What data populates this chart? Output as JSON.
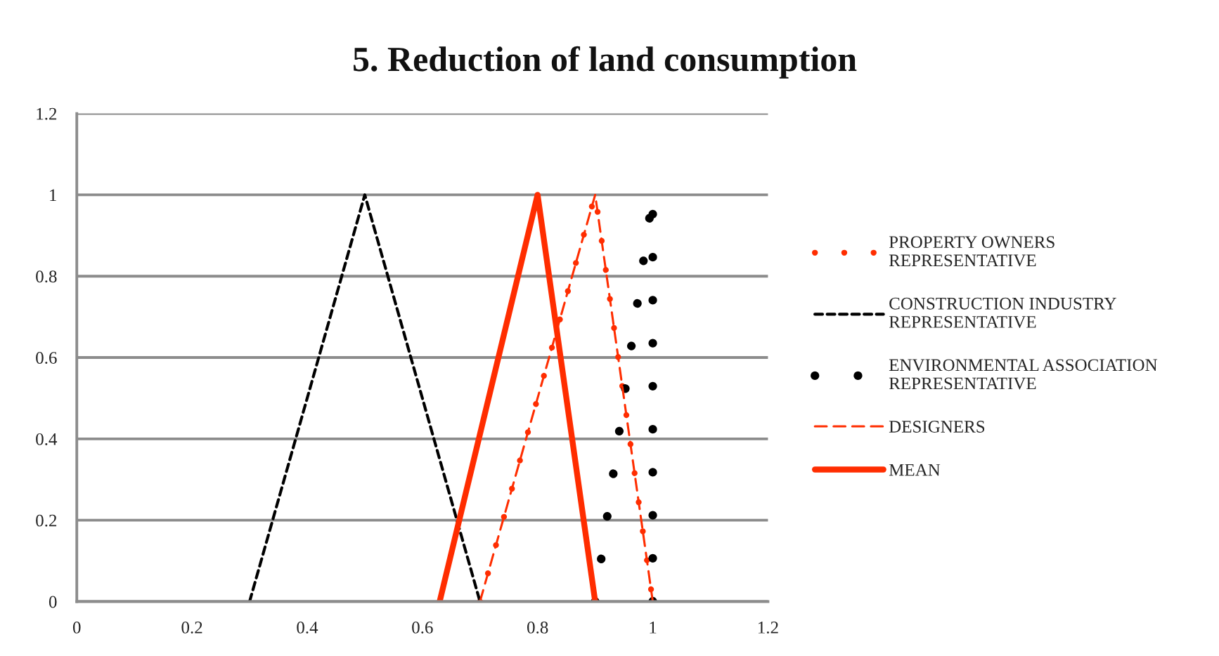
{
  "chart_data": {
    "type": "line",
    "title": "5. Reduction of land consumption",
    "xlim": [
      0,
      1.2
    ],
    "xticks": [
      0,
      0.2,
      0.4,
      0.6,
      0.8,
      1,
      1.2
    ],
    "ylim": [
      0,
      1.2
    ],
    "yticks": [
      0,
      0.2,
      0.4,
      0.6,
      0.8,
      1,
      1.2
    ],
    "grid": "y",
    "legend": "right",
    "series": [
      {
        "name": "PROPERTY OWNERS\nREPRESENTATIVE",
        "color": "#ff2d00",
        "line_style": "dotted",
        "x": [
          0.7,
          0.9,
          1
        ],
        "values": [
          0,
          1,
          0
        ]
      },
      {
        "name": "CONSTRUCTION INDUSTRY\nREPRESENTATIVE",
        "color": "#000000",
        "line_style": "dashed",
        "x": [
          0.3,
          0.5,
          0.7
        ],
        "values": [
          0,
          1,
          0
        ]
      },
      {
        "name": "ENVIRONMENTAL ASSOCIATION\nREPRESENTATIVE",
        "color": "#000000",
        "line_style": "dotted",
        "x": [
          0.9,
          1,
          1
        ],
        "values": [
          0,
          1,
          0
        ]
      },
      {
        "name": "DESIGNERS",
        "color": "#ff2d00",
        "line_style": "dashed",
        "x": [
          0.7,
          0.9,
          1
        ],
        "values": [
          0,
          1,
          0
        ]
      },
      {
        "name": "MEAN",
        "color": "#ff2d00",
        "line_style": "solid",
        "x": [
          0.63,
          0.8,
          0.9
        ],
        "values": [
          0,
          1,
          0
        ]
      }
    ]
  }
}
